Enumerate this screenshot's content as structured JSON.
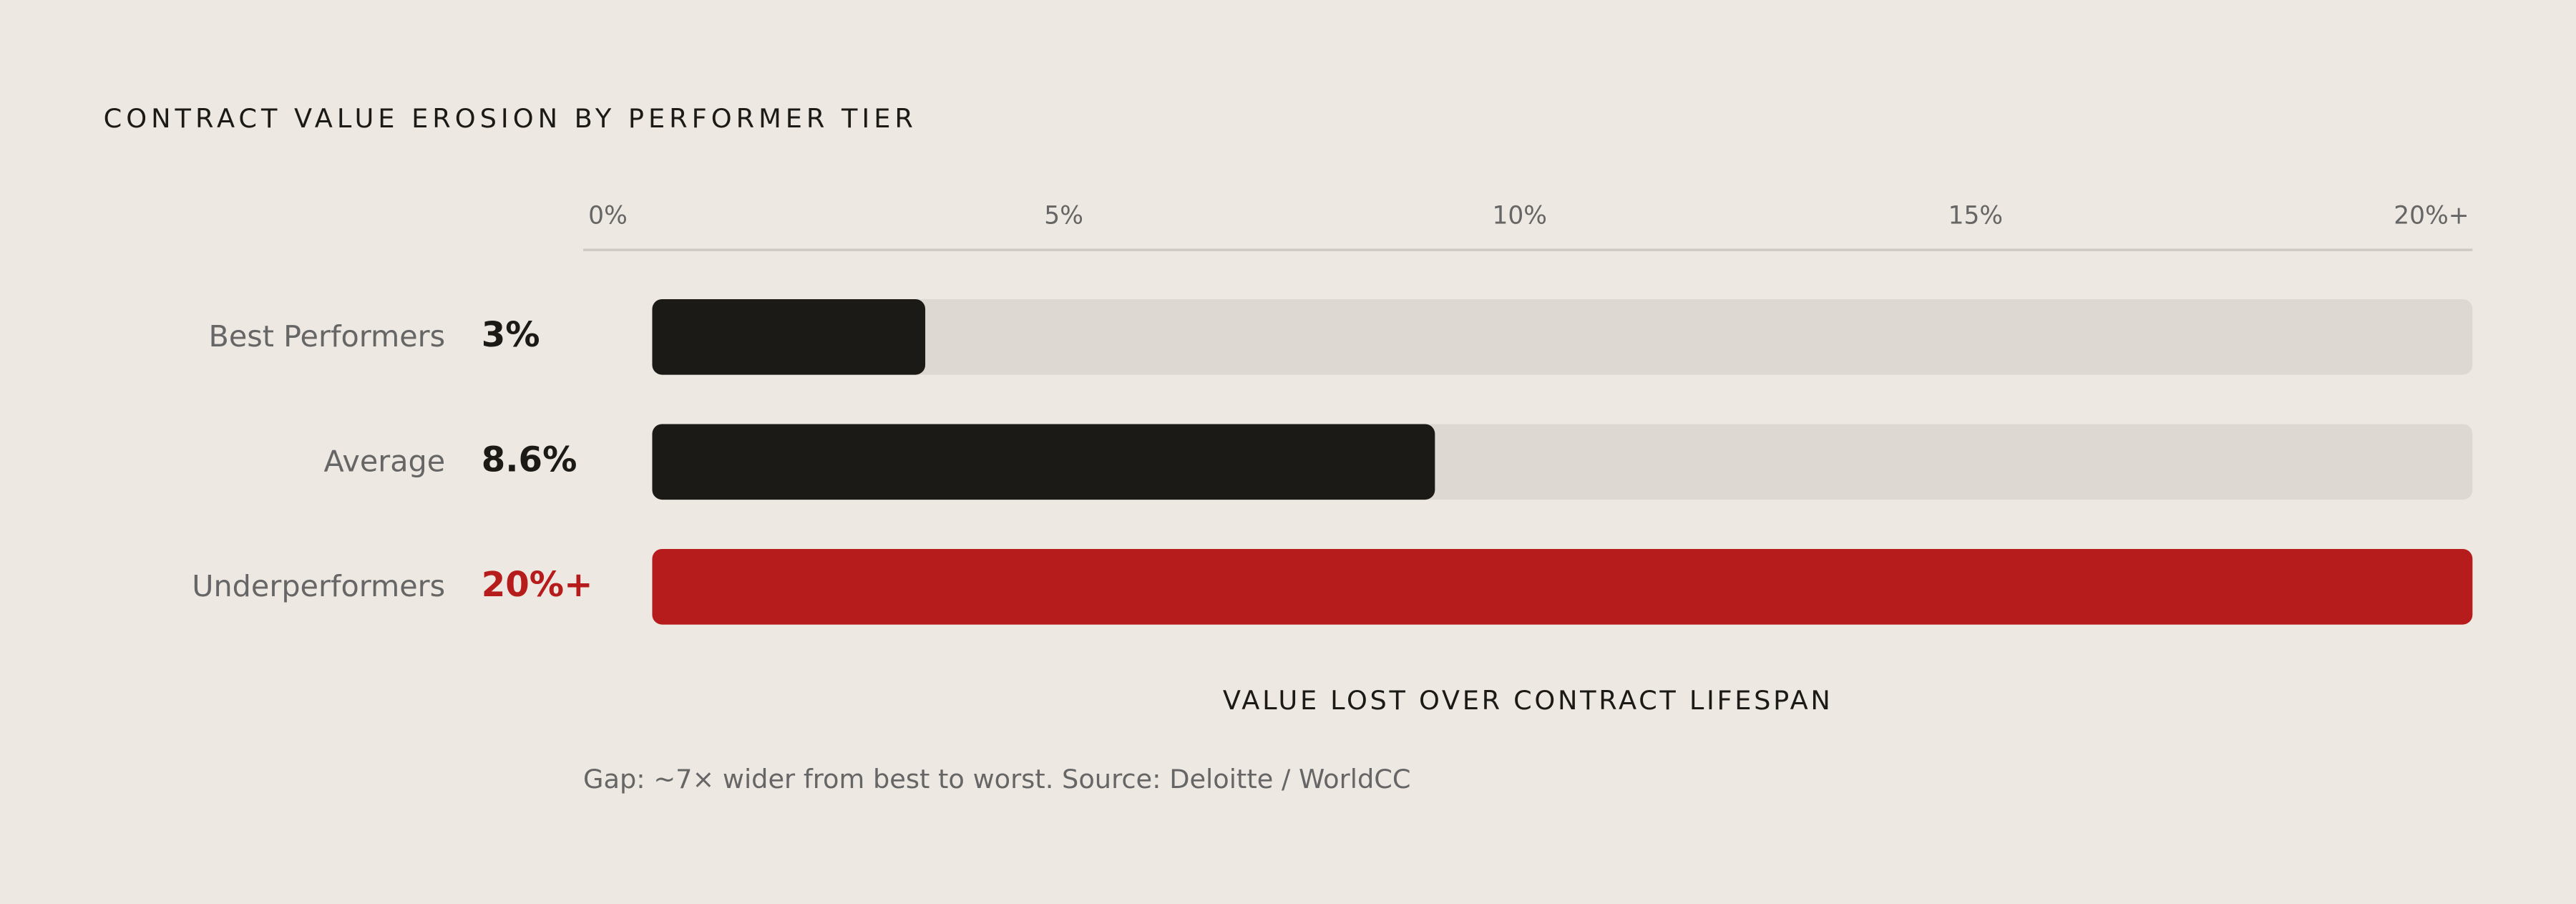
{
  "chart_data": {
    "type": "bar",
    "orientation": "horizontal",
    "title": "CONTRACT VALUE EROSION BY PERFORMER TIER",
    "x_label": "VALUE LOST OVER CONTRACT LIFESPAN",
    "note": "Gap: ~7× wider from best to worst. Source: Deloitte / WorldCC",
    "categories": [
      "Best Performers",
      "Average",
      "Underperformers"
    ],
    "values": [
      3,
      8.6,
      20
    ],
    "value_labels": [
      "3%",
      "8.6%",
      "20%+"
    ],
    "colors": [
      "#1b1a16",
      "#1b1a16",
      "#b71c1c"
    ],
    "xlim": [
      0,
      20
    ],
    "xticks": [
      {
        "value": 0,
        "label": "0%"
      },
      {
        "value": 5,
        "label": "5%"
      },
      {
        "value": 10,
        "label": "10%"
      },
      {
        "value": 15,
        "label": "15%"
      },
      {
        "value": 20,
        "label": "20%+"
      }
    ],
    "grid": false
  }
}
